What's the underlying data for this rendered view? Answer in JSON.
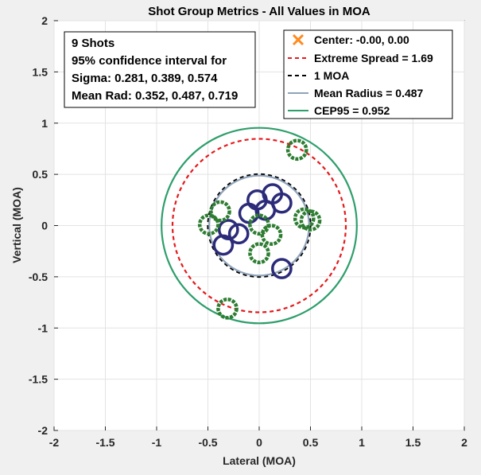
{
  "chart_data": {
    "type": "scatter",
    "title": "Shot Group Metrics - All Values in MOA",
    "xlabel": "Lateral (MOA)",
    "ylabel": "Vertical (MOA)",
    "xlim": [
      -2,
      2
    ],
    "ylim": [
      -2,
      2
    ],
    "xticks": [
      -2,
      -1.5,
      -1,
      -0.5,
      0,
      0.5,
      1,
      1.5,
      2
    ],
    "yticks": [
      -2,
      -1.5,
      -1,
      -0.5,
      0,
      0.5,
      1,
      1.5,
      2
    ],
    "xtick_labels": [
      "-2",
      "-1.5",
      "-1",
      "-0.5",
      "0",
      "0.5",
      "1",
      "1.5",
      "2"
    ],
    "ytick_labels": [
      "-2",
      "-1.5",
      "-1",
      "-0.5",
      "0",
      "0.5",
      "1",
      "1.5",
      "2"
    ],
    "grid": true,
    "center": [
      0,
      0
    ],
    "circles": [
      {
        "name": "Extreme Spread = 1.69",
        "radius": 0.845,
        "color": "#e41a1c",
        "style": "dashed"
      },
      {
        "name": "1 MOA",
        "radius": 0.5,
        "color": "#000000",
        "style": "dashed"
      },
      {
        "name": "Mean Radius = 0.487",
        "radius": 0.487,
        "color": "#8fa3ba",
        "style": "solid"
      },
      {
        "name": "CEP95 = 0.952",
        "radius": 0.952,
        "color": "#2e9e6b",
        "style": "solid"
      }
    ],
    "shots_blue": [
      [
        -0.02,
        0.25
      ],
      [
        0.13,
        0.31
      ],
      [
        0.22,
        0.22
      ],
      [
        0.06,
        0.15
      ],
      [
        -0.1,
        0.12
      ],
      [
        -0.2,
        -0.08
      ],
      [
        -0.3,
        -0.04
      ],
      [
        -0.35,
        -0.19
      ],
      [
        0.22,
        -0.42
      ]
    ],
    "shots_green": [
      [
        0.37,
        0.74
      ],
      [
        -0.38,
        0.14
      ],
      [
        -0.49,
        0.01
      ],
      [
        0.0,
        0.01
      ],
      [
        0.12,
        -0.09
      ],
      [
        0.0,
        -0.27
      ],
      [
        0.44,
        0.07
      ],
      [
        0.5,
        0.05
      ],
      [
        -0.31,
        -0.81
      ]
    ],
    "colors": {
      "blue": "#2b2b7a",
      "green": "#2e7d32",
      "center": "#ff8a1e"
    },
    "legend_position": "top-right"
  },
  "textbox": {
    "line1": "9 Shots",
    "line2": "95% confidence interval for",
    "line3": "Sigma: 0.281, 0.389, 0.574",
    "line4": "Mean Rad: 0.352, 0.487, 0.719"
  },
  "legend": {
    "center": "Center: -0.00, 0.00",
    "es": "Extreme Spread = 1.69",
    "moa": "1 MOA",
    "mr": "Mean Radius = 0.487",
    "cep": "CEP95 = 0.952"
  }
}
